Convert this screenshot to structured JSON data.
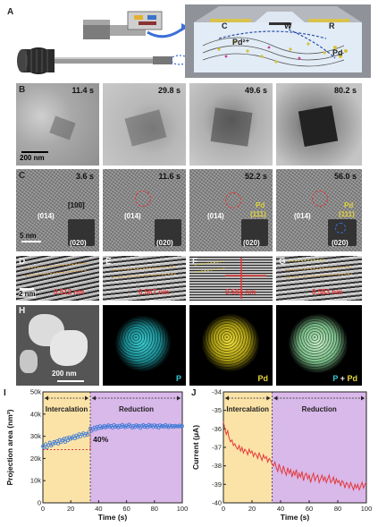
{
  "panel_labels": {
    "A": "A",
    "B": "B",
    "C": "C",
    "D": "D",
    "E": "E",
    "F": "F",
    "G": "G",
    "H": "H",
    "I": "I",
    "J": "J"
  },
  "schematic": {
    "label_c": "C",
    "label_w": "W",
    "label_r": "R",
    "label_pd_ion": "Pd²⁺",
    "label_pd": "Pd"
  },
  "row_b": {
    "times": [
      "11.4 s",
      "29.8 s",
      "49.6 s",
      "80.2 s"
    ],
    "scale_label": "200 nm"
  },
  "row_c": {
    "times": [
      "3.6 s",
      "11.6 s",
      "52.2 s",
      "56.0 s"
    ],
    "zone_axis": "[100]",
    "plane_014": "(014)",
    "plane_020": "(020)",
    "plane_111": "(111)",
    "plane_pd": "Pd",
    "scale_label": "5 nm"
  },
  "row_d": {
    "spacings": [
      "0.512 nm",
      "0.567 nm",
      "0.584 nm",
      "0.583 nm"
    ],
    "scale_label": "2 nm"
  },
  "row_h": {
    "scale_label": "200 nm",
    "map_p": "P",
    "map_pd": "Pd",
    "overlay_p": "P",
    "overlay_plus": " + ",
    "overlay_pd": "Pd"
  },
  "colors": {
    "intercalation": "#fbe3a8",
    "reduction": "#d9b8ea",
    "area_points": "#3a79d6",
    "current_line": "#e23b3b"
  },
  "chart_data": [
    {
      "type": "scatter",
      "panel": "I",
      "ylabel": "Projection area (nm²)",
      "xlabel": "Time (s)",
      "xlim": [
        0,
        100
      ],
      "ylim": [
        0,
        50000
      ],
      "xticks": [
        "0",
        "20",
        "40",
        "60",
        "80",
        "100"
      ],
      "yticks": [
        "0",
        "10k",
        "20k",
        "30k",
        "40k",
        "50k"
      ],
      "regions": [
        {
          "label": "Intercalation",
          "from": 0,
          "to": 34
        },
        {
          "label": "Reduction",
          "from": 34,
          "to": 100
        }
      ],
      "annotation": "40%",
      "reference_y": 24000,
      "series": [
        {
          "x": [
            0,
            1,
            2,
            3,
            4,
            5,
            6,
            7,
            8,
            9,
            10,
            11,
            12,
            13,
            14,
            15,
            16,
            17,
            18,
            19,
            20,
            21,
            22,
            23,
            24,
            25,
            26,
            27,
            28,
            29,
            30,
            31,
            32,
            33,
            34,
            35,
            36,
            37,
            38,
            39,
            40,
            41,
            42,
            43,
            44,
            45,
            46,
            47,
            48,
            49,
            50,
            51,
            52,
            53,
            54,
            55,
            56,
            57,
            58,
            59,
            60,
            61,
            62,
            63,
            64,
            65,
            66,
            67,
            68,
            69,
            70,
            71,
            72,
            73,
            74,
            75,
            76,
            77,
            78,
            79,
            80,
            81,
            82,
            83,
            84,
            85,
            86,
            87,
            88,
            89,
            90,
            91,
            92,
            93,
            94,
            95,
            96,
            97,
            98,
            99,
            100
          ],
          "y": [
            25500,
            24800,
            26500,
            25000,
            26000,
            27200,
            25800,
            26400,
            27500,
            26900,
            27800,
            26600,
            28400,
            27300,
            28200,
            28900,
            27400,
            29200,
            28100,
            29600,
            28800,
            29300,
            30100,
            29000,
            30400,
            29600,
            31000,
            29900,
            30800,
            31400,
            30300,
            31200,
            30600,
            32000,
            33600,
            32400,
            33200,
            34000,
            33100,
            34300,
            33600,
            34600,
            33700,
            34100,
            34800,
            33900,
            34400,
            35000,
            34200,
            34700,
            33800,
            35100,
            34300,
            34600,
            33900,
            34800,
            34200,
            35200,
            34500,
            34000,
            34900,
            34300,
            35300,
            34600,
            33800,
            34700,
            34100,
            35000,
            34400,
            34800,
            33700,
            34600,
            35100,
            34200,
            34700,
            34000,
            35200,
            34500,
            34900,
            34100,
            35000,
            34300,
            34800,
            33800,
            35000,
            34400,
            34700,
            34200,
            35100,
            34500,
            34000,
            34900,
            34300,
            34700,
            34100,
            34800,
            34500,
            34300,
            34900,
            34400,
            34600
          ]
        }
      ]
    },
    {
      "type": "line",
      "panel": "J",
      "ylabel": "Current (μA)",
      "xlabel": "Time (s)",
      "xlim": [
        0,
        100
      ],
      "ylim": [
        -40,
        -34
      ],
      "xticks": [
        "0",
        "20",
        "40",
        "60",
        "80",
        "100"
      ],
      "yticks": [
        "-34",
        "-35",
        "-36",
        "-37",
        "-38",
        "-39",
        "-40"
      ],
      "regions": [
        {
          "label": "Intercalation",
          "from": 0,
          "to": 34
        },
        {
          "label": "Reduction",
          "from": 34,
          "to": 100
        }
      ],
      "series": [
        {
          "x": [
            0,
            1,
            2,
            3,
            4,
            5,
            6,
            7,
            8,
            9,
            10,
            11,
            12,
            13,
            14,
            15,
            16,
            17,
            18,
            19,
            20,
            21,
            22,
            23,
            24,
            25,
            26,
            27,
            28,
            29,
            30,
            31,
            32,
            33,
            34,
            35,
            36,
            37,
            38,
            39,
            40,
            41,
            42,
            43,
            44,
            45,
            46,
            47,
            48,
            49,
            50,
            51,
            52,
            53,
            54,
            55,
            56,
            57,
            58,
            59,
            60,
            61,
            62,
            63,
            64,
            65,
            66,
            67,
            68,
            69,
            70,
            71,
            72,
            73,
            74,
            75,
            76,
            77,
            78,
            79,
            80,
            81,
            82,
            83,
            84,
            85,
            86,
            87,
            88,
            89,
            90,
            91,
            92,
            93,
            94,
            95,
            96,
            97,
            98,
            99,
            100
          ],
          "y": [
            -35.6,
            -36.0,
            -36.3,
            -36.1,
            -36.5,
            -36.7,
            -36.6,
            -36.9,
            -36.8,
            -37.0,
            -37.1,
            -36.9,
            -37.2,
            -37.0,
            -37.3,
            -37.1,
            -37.2,
            -37.4,
            -37.1,
            -37.3,
            -37.2,
            -37.5,
            -37.3,
            -37.4,
            -37.6,
            -37.3,
            -37.5,
            -37.7,
            -37.4,
            -37.6,
            -37.5,
            -37.8,
            -37.6,
            -37.7,
            -37.9,
            -38.0,
            -37.8,
            -38.1,
            -38.3,
            -37.9,
            -38.2,
            -38.4,
            -38.0,
            -38.3,
            -38.5,
            -38.1,
            -38.4,
            -38.2,
            -38.6,
            -38.3,
            -38.5,
            -38.2,
            -38.7,
            -38.4,
            -38.6,
            -38.3,
            -38.8,
            -38.5,
            -38.4,
            -38.7,
            -38.5,
            -38.9,
            -38.6,
            -38.4,
            -38.8,
            -38.6,
            -38.5,
            -38.9,
            -38.7,
            -38.5,
            -38.8,
            -38.6,
            -38.9,
            -38.7,
            -38.5,
            -38.9,
            -38.8,
            -38.6,
            -39.0,
            -38.7,
            -38.9,
            -38.8,
            -39.1,
            -38.8,
            -38.9,
            -39.2,
            -38.9,
            -39.0,
            -39.2,
            -38.9,
            -39.1,
            -39.3,
            -39.0,
            -39.2,
            -39.0,
            -39.3,
            -39.1,
            -38.9,
            -39.2,
            -39.0,
            -38.9
          ]
        }
      ]
    }
  ]
}
